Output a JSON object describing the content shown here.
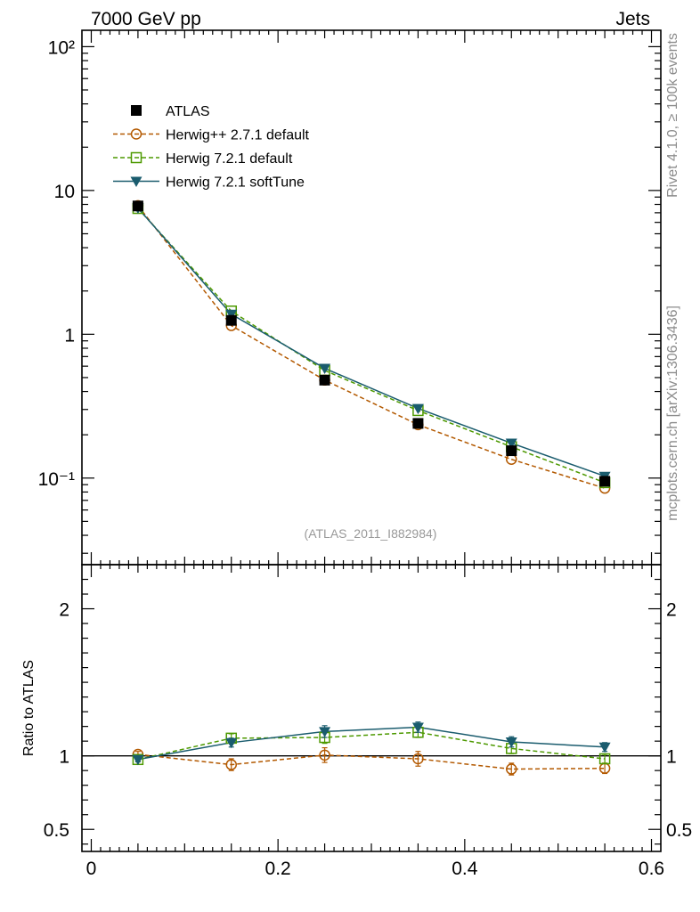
{
  "header": {
    "left": "7000 GeV pp",
    "right": "Jets"
  },
  "side_labels": {
    "top": "Rivet 4.1.0, ≥ 100k events",
    "bottom": "mcplots.cern.ch [arXiv:1306.3436]"
  },
  "reference": "(ATLAS_2011_I882984)",
  "chart_data": [
    {
      "type": "line",
      "panel": "main",
      "yscale": "log",
      "xlim": [
        -0.01,
        0.61
      ],
      "ylim": [
        0.025,
        130
      ],
      "x": [
        0.05,
        0.15,
        0.25,
        0.35,
        0.45,
        0.55
      ],
      "xticks": [
        "0",
        "0.2",
        "0.4",
        "0.6"
      ],
      "yticks": [
        "10⁻¹",
        "1",
        "10",
        "10²"
      ],
      "series": [
        {
          "name": "ATLAS",
          "marker": "filled-square",
          "color": "#000000",
          "values": [
            7.8,
            1.25,
            0.48,
            0.24,
            0.155,
            0.095
          ]
        },
        {
          "name": "Herwig++ 2.7.1 default",
          "marker": "open-circle",
          "color": "#b35900",
          "dash": "dashed",
          "values": [
            7.85,
            1.15,
            0.48,
            0.235,
            0.135,
            0.085
          ]
        },
        {
          "name": "Herwig 7.2.1 default",
          "marker": "open-square",
          "color": "#4d9900",
          "dash": "dashed",
          "values": [
            7.5,
            1.45,
            0.56,
            0.295,
            0.165,
            0.093
          ]
        },
        {
          "name": "Herwig 7.2.1 softTune",
          "marker": "filled-triangle-down",
          "color": "#1a5c6e",
          "dash": "solid",
          "values": [
            7.55,
            1.38,
            0.58,
            0.305,
            0.175,
            0.103
          ]
        }
      ]
    },
    {
      "type": "line",
      "panel": "ratio",
      "ylabel": "Ratio to ATLAS",
      "ylim": [
        0.35,
        2.3
      ],
      "x": [
        0.05,
        0.15,
        0.25,
        0.35,
        0.45,
        0.55
      ],
      "xticks": [
        "0",
        "0.2",
        "0.4",
        "0.6"
      ],
      "yticks": [
        "0.5",
        "1",
        "2"
      ],
      "reference_line": 1,
      "series": [
        {
          "name": "Herwig++ 2.7.1 default",
          "marker": "open-circle",
          "color": "#b35900",
          "dash": "dashed",
          "values": [
            1.01,
            0.94,
            1.005,
            0.98,
            0.91,
            0.915
          ],
          "err": [
            0.02,
            0.04,
            0.05,
            0.05,
            0.04,
            0.035
          ]
        },
        {
          "name": "Herwig 7.2.1 default",
          "marker": "open-square",
          "color": "#4d9900",
          "dash": "dashed",
          "values": [
            0.975,
            1.12,
            1.125,
            1.16,
            1.05,
            0.98
          ],
          "err": [
            0.015,
            0.03,
            0.04,
            0.035,
            0.035,
            0.03
          ]
        },
        {
          "name": "Herwig 7.2.1 softTune",
          "marker": "filled-triangle-down",
          "color": "#1a5c6e",
          "dash": "solid",
          "values": [
            0.975,
            1.09,
            1.165,
            1.195,
            1.095,
            1.06
          ],
          "err": [
            0.015,
            0.03,
            0.04,
            0.035,
            0.035,
            0.03
          ]
        }
      ]
    }
  ]
}
